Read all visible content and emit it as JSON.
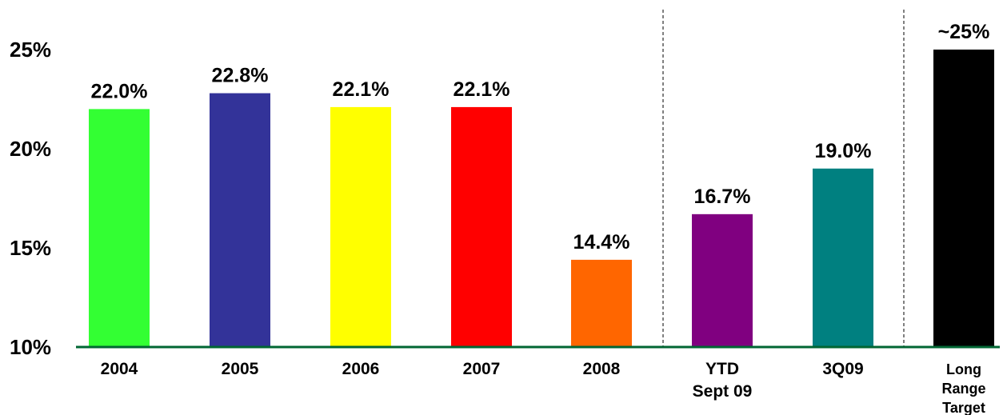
{
  "chart_data": {
    "type": "bar",
    "categories": [
      [
        "2004"
      ],
      [
        "2005"
      ],
      [
        "2006"
      ],
      [
        "2007"
      ],
      [
        "2008"
      ],
      [
        "YTD",
        "Sept 09"
      ],
      [
        "3Q09"
      ],
      [
        "Long",
        "Range",
        "Target"
      ]
    ],
    "values": [
      22.0,
      22.8,
      22.1,
      22.1,
      14.4,
      16.7,
      19.0,
      25.0
    ],
    "data_labels": [
      "22.0%",
      "22.8%",
      "22.1%",
      "22.1%",
      "14.4%",
      "16.7%",
      "19.0%",
      "~25%"
    ],
    "colors": [
      "#33ff33",
      "#333399",
      "#ffff00",
      "#ff0000",
      "#ff6600",
      "#800080",
      "#008080",
      "#000000"
    ],
    "y_ticks": [
      {
        "value": 10,
        "label": "10%"
      },
      {
        "value": 15,
        "label": "15%"
      },
      {
        "value": 20,
        "label": "20%"
      },
      {
        "value": 25,
        "label": "25%"
      }
    ],
    "ylim": [
      10,
      25
    ],
    "separators_after": [
      4,
      6
    ],
    "axis_color": "#006633",
    "grid": false,
    "title": "",
    "xlabel": "",
    "ylabel": ""
  }
}
